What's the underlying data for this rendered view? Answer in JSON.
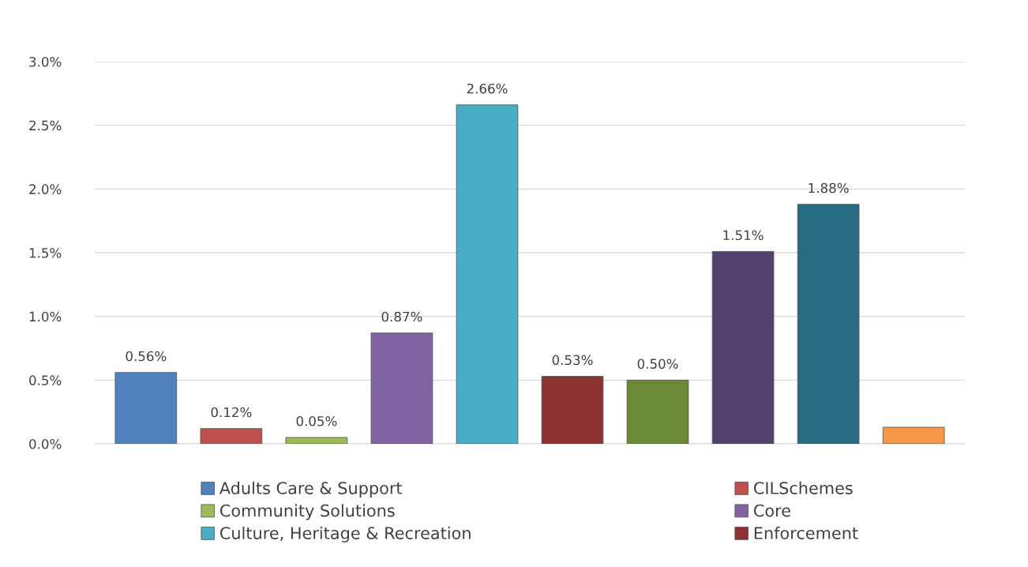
{
  "chart_data": {
    "type": "bar",
    "categories": [
      null,
      null,
      null,
      null,
      null,
      null,
      null,
      null,
      null,
      null
    ],
    "series": [
      {
        "name": "Adults Care & Support",
        "color": "#4f81bd",
        "values": [
          0.56,
          null,
          null,
          null,
          null,
          null,
          null,
          null,
          null,
          null
        ],
        "value_labels": [
          "0.56%",
          null,
          null,
          null,
          null,
          null,
          null,
          null,
          null,
          null
        ]
      },
      {
        "name": "CILSchemes",
        "color": "#c0504d",
        "values": [
          null,
          0.12,
          null,
          null,
          null,
          null,
          null,
          null,
          null,
          null
        ],
        "value_labels": [
          null,
          "0.12%",
          null,
          null,
          null,
          null,
          null,
          null,
          null,
          null
        ]
      },
      {
        "name": "Community Solutions",
        "color": "#9bbb59",
        "values": [
          null,
          null,
          0.05,
          null,
          null,
          null,
          null,
          null,
          null,
          null
        ],
        "value_labels": [
          null,
          null,
          "0.05%",
          null,
          null,
          null,
          null,
          null,
          null,
          null
        ]
      },
      {
        "name": "Core",
        "color": "#8064a2",
        "values": [
          null,
          null,
          null,
          0.87,
          null,
          null,
          null,
          null,
          null,
          null
        ],
        "value_labels": [
          null,
          null,
          null,
          "0.87%",
          null,
          null,
          null,
          null,
          null,
          null
        ]
      },
      {
        "name": "Culture, Heritage & Recreation",
        "color": "#4bacc6",
        "values": [
          null,
          null,
          null,
          null,
          2.66,
          null,
          null,
          null,
          null,
          null
        ],
        "value_labels": [
          null,
          null,
          null,
          null,
          "2.66%",
          null,
          null,
          null,
          null,
          null
        ]
      },
      {
        "name": "Enforcement",
        "color": "#8c3131",
        "values": [
          null,
          null,
          null,
          null,
          null,
          0.53,
          null,
          null,
          null,
          null
        ],
        "value_labels": [
          null,
          null,
          null,
          null,
          null,
          "0.53%",
          null,
          null,
          null,
          null
        ]
      },
      {
        "color": "#6b8a35",
        "values": [
          null,
          null,
          null,
          null,
          null,
          null,
          0.5,
          null,
          null,
          null
        ],
        "value_labels": [
          null,
          null,
          null,
          null,
          null,
          null,
          "0.50%",
          null,
          null,
          null
        ]
      },
      {
        "color": "#52406e",
        "values": [
          null,
          null,
          null,
          null,
          null,
          null,
          null,
          1.51,
          null,
          null
        ],
        "value_labels": [
          null,
          null,
          null,
          null,
          null,
          null,
          null,
          "1.51%",
          null,
          null
        ]
      },
      {
        "color": "#256c80",
        "values": [
          null,
          null,
          null,
          null,
          null,
          null,
          null,
          null,
          1.88,
          null
        ],
        "value_labels": [
          null,
          null,
          null,
          null,
          null,
          null,
          null,
          null,
          "1.88%",
          null
        ]
      },
      {
        "color": "#f79646",
        "values": [
          null,
          null,
          null,
          null,
          null,
          null,
          null,
          null,
          null,
          0.13
        ]
      }
    ],
    "ylim": [
      0,
      3.0
    ],
    "yticks": [
      {
        "value": 0,
        "label": "0.0%"
      },
      {
        "value": 0.5,
        "label": "0.5%"
      },
      {
        "value": 1.0,
        "label": "1.0%"
      },
      {
        "value": 1.5,
        "label": "1.5%"
      },
      {
        "value": 2.0,
        "label": "2.0%"
      },
      {
        "value": 2.5,
        "label": "2.5%"
      },
      {
        "value": 3.0,
        "label": "3.0%"
      }
    ],
    "grid": "y",
    "legend": "bottom"
  }
}
